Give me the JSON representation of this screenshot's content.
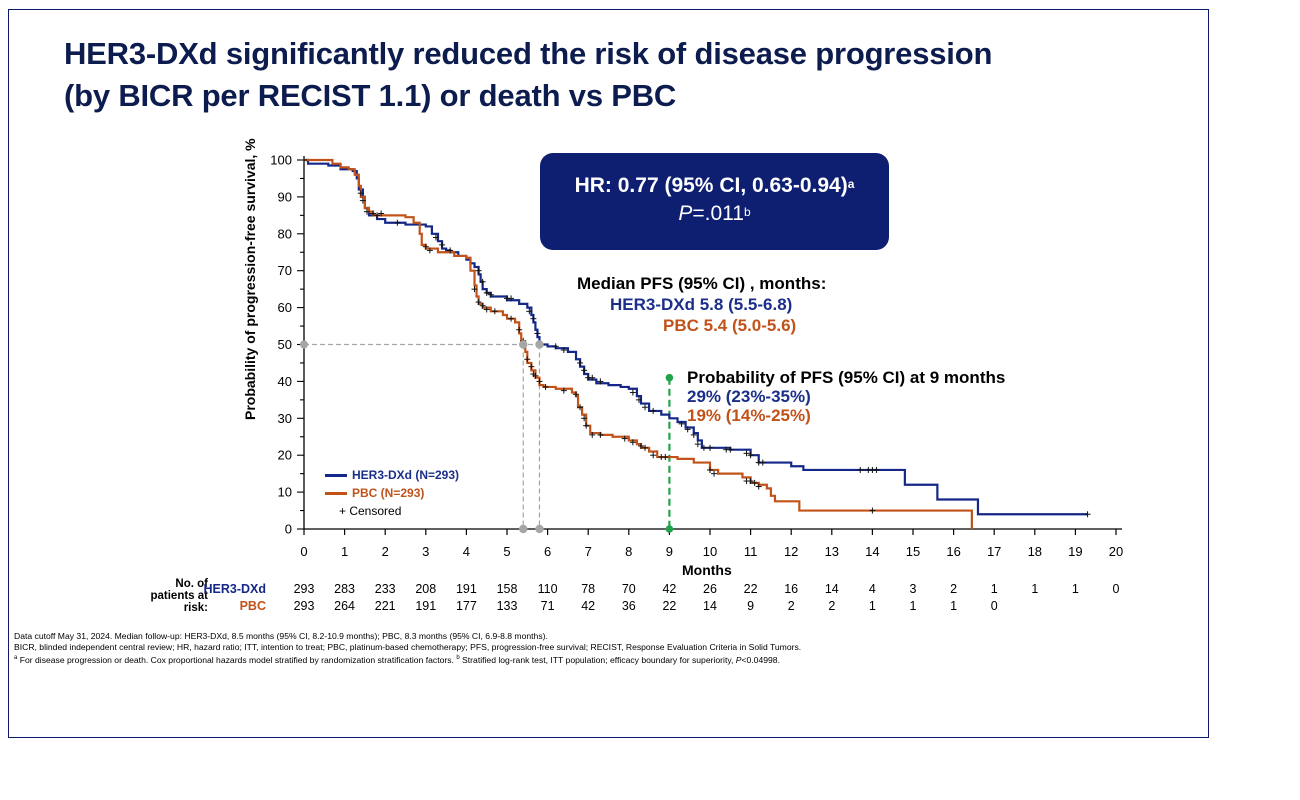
{
  "slide": {
    "title_line1": "HER3-DXd significantly reduced the risk of disease progression",
    "title_line2": "(by BICR per RECIST 1.1) or death vs PBC"
  },
  "hr_box": {
    "line1": "HR: 0.77 (95% CI, 0.63-0.94)",
    "line1_sup": "a",
    "p_label": "P",
    "p_value": "=.011",
    "p_sup": "b"
  },
  "median_pfs": {
    "heading": "Median PFS (95% CI) , months:",
    "her3": "HER3-DXd 5.8 (5.5-6.8)",
    "pbc": "PBC 5.4 (5.0-5.6)"
  },
  "pfs_9mo": {
    "heading": "Probability of PFS (95% CI) at 9 months",
    "her3": "29% (23%-35%)",
    "pbc": "19% (14%-25%)"
  },
  "legend": {
    "her3": "HER3-DXd (N=293)",
    "pbc": "PBC (N=293)",
    "censored": "+ Censored"
  },
  "risk_table": {
    "heading": [
      "No. of",
      "patients at",
      "risk:"
    ],
    "rows": [
      {
        "name": "HER3-DXd",
        "values": [
          "293",
          "283",
          "233",
          "208",
          "191",
          "158",
          "110",
          "78",
          "70",
          "42",
          "26",
          "22",
          "16",
          "14",
          "4",
          "3",
          "2",
          "1",
          "1",
          "1",
          "0"
        ]
      },
      {
        "name": "PBC",
        "values": [
          "293",
          "264",
          "221",
          "191",
          "177",
          "133",
          "71",
          "42",
          "36",
          "22",
          "14",
          "9",
          "2",
          "2",
          "1",
          "1",
          "1",
          "0"
        ]
      }
    ]
  },
  "footnotes": {
    "line1": "Data cutoff May 31, 2024. Median follow-up: HER3-DXd, 8.5 months (95% CI, 8.2-10.9 months); PBC, 8.3 months (95% CI, 6.9-8.8 months).",
    "line2": "BICR, blinded independent central review; HR, hazard ratio; ITT, intention to treat; PBC, platinum-based chemotherapy; PFS, progression-free survival; RECIST, Response Evaluation Criteria in Solid Tumors.",
    "line3_sup_a": "a",
    "line3_a": " For disease progression or death. Cox proportional hazards model stratified by randomization stratification factors. ",
    "line3_sup_b": "b",
    "line3_b": " Stratified log-rank test, ITT population; efficacy boundary for superiority, ",
    "line3_p": "P",
    "line3_end": "<0.04998."
  },
  "colors": {
    "her3": "#15288a",
    "pbc": "#c1531a",
    "title": "#0d1c4e",
    "hr_box": "#0e1f72",
    "guide_gray": "#a6a6a6",
    "nine_month_marker": "#22a24a"
  },
  "chart_data": {
    "type": "line",
    "subtype": "kaplan-meier",
    "title": "",
    "xlabel": "Months",
    "ylabel": "Probability of progression-free survival, %",
    "xlim": [
      0,
      20
    ],
    "ylim": [
      0,
      100
    ],
    "xticks": [
      0,
      1,
      2,
      3,
      4,
      5,
      6,
      7,
      8,
      9,
      10,
      11,
      12,
      13,
      14,
      15,
      16,
      17,
      18,
      19,
      20
    ],
    "yticks": [
      0,
      10,
      20,
      30,
      40,
      50,
      60,
      70,
      80,
      90,
      100
    ],
    "legend_position": "bottom-left",
    "median_markers": [
      {
        "series": "HER3-DXd",
        "x": 5.8,
        "y": 50
      },
      {
        "series": "PBC",
        "x": 5.4,
        "y": 50
      }
    ],
    "reference_line": {
      "x": 9,
      "label": "9 months"
    },
    "series": [
      {
        "name": "HER3-DXd (N=293)",
        "color": "#15288a",
        "steps": [
          [
            0,
            100
          ],
          [
            0.1,
            99
          ],
          [
            0.6,
            98.5
          ],
          [
            0.9,
            97.5
          ],
          [
            1.2,
            97
          ],
          [
            1.3,
            95
          ],
          [
            1.35,
            92
          ],
          [
            1.45,
            90
          ],
          [
            1.5,
            87
          ],
          [
            1.6,
            85
          ],
          [
            1.8,
            84
          ],
          [
            2.0,
            83
          ],
          [
            2.5,
            82.5
          ],
          [
            3.0,
            82
          ],
          [
            3.15,
            80
          ],
          [
            3.3,
            78
          ],
          [
            3.4,
            76
          ],
          [
            3.5,
            75.5
          ],
          [
            3.6,
            75
          ],
          [
            3.8,
            74
          ],
          [
            4.0,
            73
          ],
          [
            4.1,
            72
          ],
          [
            4.2,
            71
          ],
          [
            4.3,
            69
          ],
          [
            4.35,
            67
          ],
          [
            4.4,
            65
          ],
          [
            4.5,
            64
          ],
          [
            4.6,
            63
          ],
          [
            5.0,
            62
          ],
          [
            5.3,
            61
          ],
          [
            5.5,
            60
          ],
          [
            5.6,
            58
          ],
          [
            5.65,
            56
          ],
          [
            5.7,
            54
          ],
          [
            5.75,
            52
          ],
          [
            5.8,
            50
          ],
          [
            6.0,
            49.5
          ],
          [
            6.2,
            49
          ],
          [
            6.5,
            48
          ],
          [
            6.7,
            46
          ],
          [
            6.8,
            44
          ],
          [
            6.9,
            42
          ],
          [
            7.0,
            40.5
          ],
          [
            7.2,
            39.5
          ],
          [
            7.5,
            39
          ],
          [
            7.8,
            38.5
          ],
          [
            8.0,
            38
          ],
          [
            8.2,
            36
          ],
          [
            8.3,
            34
          ],
          [
            8.5,
            32
          ],
          [
            8.8,
            31
          ],
          [
            9.0,
            30
          ],
          [
            9.2,
            29
          ],
          [
            9.4,
            27.5
          ],
          [
            9.6,
            26
          ],
          [
            9.7,
            24
          ],
          [
            9.8,
            22
          ],
          [
            10.5,
            21.5
          ],
          [
            11.0,
            20
          ],
          [
            11.2,
            18
          ],
          [
            12.0,
            17
          ],
          [
            12.3,
            16
          ],
          [
            14.8,
            12
          ],
          [
            15.6,
            8
          ],
          [
            16.6,
            4
          ],
          [
            19.3,
            4
          ]
        ],
        "censored": [
          [
            0,
            100
          ],
          [
            1.45,
            89
          ],
          [
            1.55,
            86
          ],
          [
            1.9,
            85.5
          ],
          [
            2.3,
            83
          ],
          [
            3.25,
            79
          ],
          [
            3.4,
            77
          ],
          [
            3.6,
            75.5
          ],
          [
            4.3,
            70
          ],
          [
            4.4,
            67
          ],
          [
            4.5,
            64
          ],
          [
            4.6,
            63.5
          ],
          [
            5.0,
            62.5
          ],
          [
            5.1,
            62.5
          ],
          [
            5.55,
            59
          ],
          [
            5.65,
            57
          ],
          [
            5.75,
            53
          ],
          [
            5.85,
            50
          ],
          [
            6.2,
            49.5
          ],
          [
            6.4,
            48.5
          ],
          [
            6.8,
            45
          ],
          [
            6.9,
            43
          ],
          [
            7.0,
            41
          ],
          [
            7.1,
            41
          ],
          [
            7.3,
            40
          ],
          [
            8.1,
            37
          ],
          [
            8.25,
            35
          ],
          [
            8.4,
            33
          ],
          [
            8.6,
            32
          ],
          [
            9.3,
            28.5
          ],
          [
            9.45,
            27
          ],
          [
            9.6,
            25.5
          ],
          [
            9.7,
            23
          ],
          [
            9.85,
            22
          ],
          [
            10.0,
            22
          ],
          [
            10.4,
            21.5
          ],
          [
            10.5,
            21.5
          ],
          [
            10.9,
            20.5
          ],
          [
            11.0,
            20
          ],
          [
            11.2,
            18
          ],
          [
            11.3,
            18
          ],
          [
            13.7,
            16
          ],
          [
            13.9,
            16
          ],
          [
            14.0,
            16
          ],
          [
            14.1,
            16
          ],
          [
            19.3,
            4
          ]
        ]
      },
      {
        "name": "PBC (N=293)",
        "color": "#c1531a",
        "steps": [
          [
            0,
            100
          ],
          [
            0.7,
            99
          ],
          [
            0.9,
            98
          ],
          [
            1.1,
            97.5
          ],
          [
            1.25,
            96
          ],
          [
            1.35,
            93
          ],
          [
            1.4,
            90
          ],
          [
            1.5,
            87
          ],
          [
            1.6,
            86
          ],
          [
            1.7,
            85
          ],
          [
            2.5,
            84.5
          ],
          [
            2.7,
            83
          ],
          [
            2.85,
            80
          ],
          [
            2.9,
            77
          ],
          [
            3.0,
            76
          ],
          [
            3.3,
            75
          ],
          [
            3.7,
            74
          ],
          [
            4.0,
            73.5
          ],
          [
            4.1,
            70
          ],
          [
            4.2,
            66
          ],
          [
            4.25,
            63
          ],
          [
            4.3,
            61
          ],
          [
            4.4,
            60
          ],
          [
            4.6,
            59
          ],
          [
            4.9,
            58
          ],
          [
            5.0,
            57
          ],
          [
            5.2,
            56
          ],
          [
            5.3,
            53
          ],
          [
            5.35,
            51
          ],
          [
            5.4,
            50
          ],
          [
            5.45,
            48
          ],
          [
            5.5,
            45
          ],
          [
            5.6,
            43
          ],
          [
            5.7,
            41
          ],
          [
            5.8,
            39
          ],
          [
            5.9,
            38.5
          ],
          [
            6.2,
            38
          ],
          [
            6.6,
            37
          ],
          [
            6.7,
            36
          ],
          [
            6.75,
            33
          ],
          [
            6.85,
            31
          ],
          [
            6.95,
            28
          ],
          [
            7.05,
            26
          ],
          [
            7.3,
            25.5
          ],
          [
            7.6,
            25
          ],
          [
            8.0,
            24
          ],
          [
            8.2,
            23
          ],
          [
            8.3,
            22
          ],
          [
            8.5,
            21
          ],
          [
            8.7,
            19.5
          ],
          [
            9.2,
            19
          ],
          [
            9.6,
            18
          ],
          [
            10.0,
            16
          ],
          [
            10.2,
            15
          ],
          [
            10.8,
            14
          ],
          [
            11.0,
            12.5
          ],
          [
            11.2,
            12
          ],
          [
            11.4,
            11
          ],
          [
            11.5,
            9
          ],
          [
            11.6,
            7.5
          ],
          [
            12.0,
            7.5
          ],
          [
            12.2,
            5
          ],
          [
            16.4,
            5
          ],
          [
            16.45,
            0
          ]
        ],
        "censored": [
          [
            1.4,
            91
          ],
          [
            1.7,
            85.5
          ],
          [
            1.8,
            85
          ],
          [
            3.0,
            76.5
          ],
          [
            3.1,
            75.5
          ],
          [
            4.2,
            65
          ],
          [
            4.3,
            61.5
          ],
          [
            4.4,
            60.5
          ],
          [
            4.5,
            59.5
          ],
          [
            4.7,
            59
          ],
          [
            5.1,
            57
          ],
          [
            5.3,
            54
          ],
          [
            5.4,
            51
          ],
          [
            5.5,
            46
          ],
          [
            5.6,
            44
          ],
          [
            5.65,
            42
          ],
          [
            5.7,
            41.5
          ],
          [
            5.8,
            40
          ],
          [
            5.95,
            38.5
          ],
          [
            6.4,
            37.5
          ],
          [
            6.7,
            36.5
          ],
          [
            6.8,
            33
          ],
          [
            6.9,
            30
          ],
          [
            6.95,
            28
          ],
          [
            7.1,
            25.5
          ],
          [
            7.3,
            25.5
          ],
          [
            7.9,
            24.5
          ],
          [
            8.1,
            23.5
          ],
          [
            8.3,
            22.5
          ],
          [
            8.4,
            22
          ],
          [
            8.6,
            20
          ],
          [
            8.8,
            19.5
          ],
          [
            8.9,
            19.5
          ],
          [
            10.0,
            16
          ],
          [
            10.1,
            15
          ],
          [
            10.9,
            13
          ],
          [
            11.0,
            13
          ],
          [
            11.1,
            12.5
          ],
          [
            11.2,
            11.5
          ],
          [
            14.0,
            5
          ]
        ]
      }
    ]
  }
}
